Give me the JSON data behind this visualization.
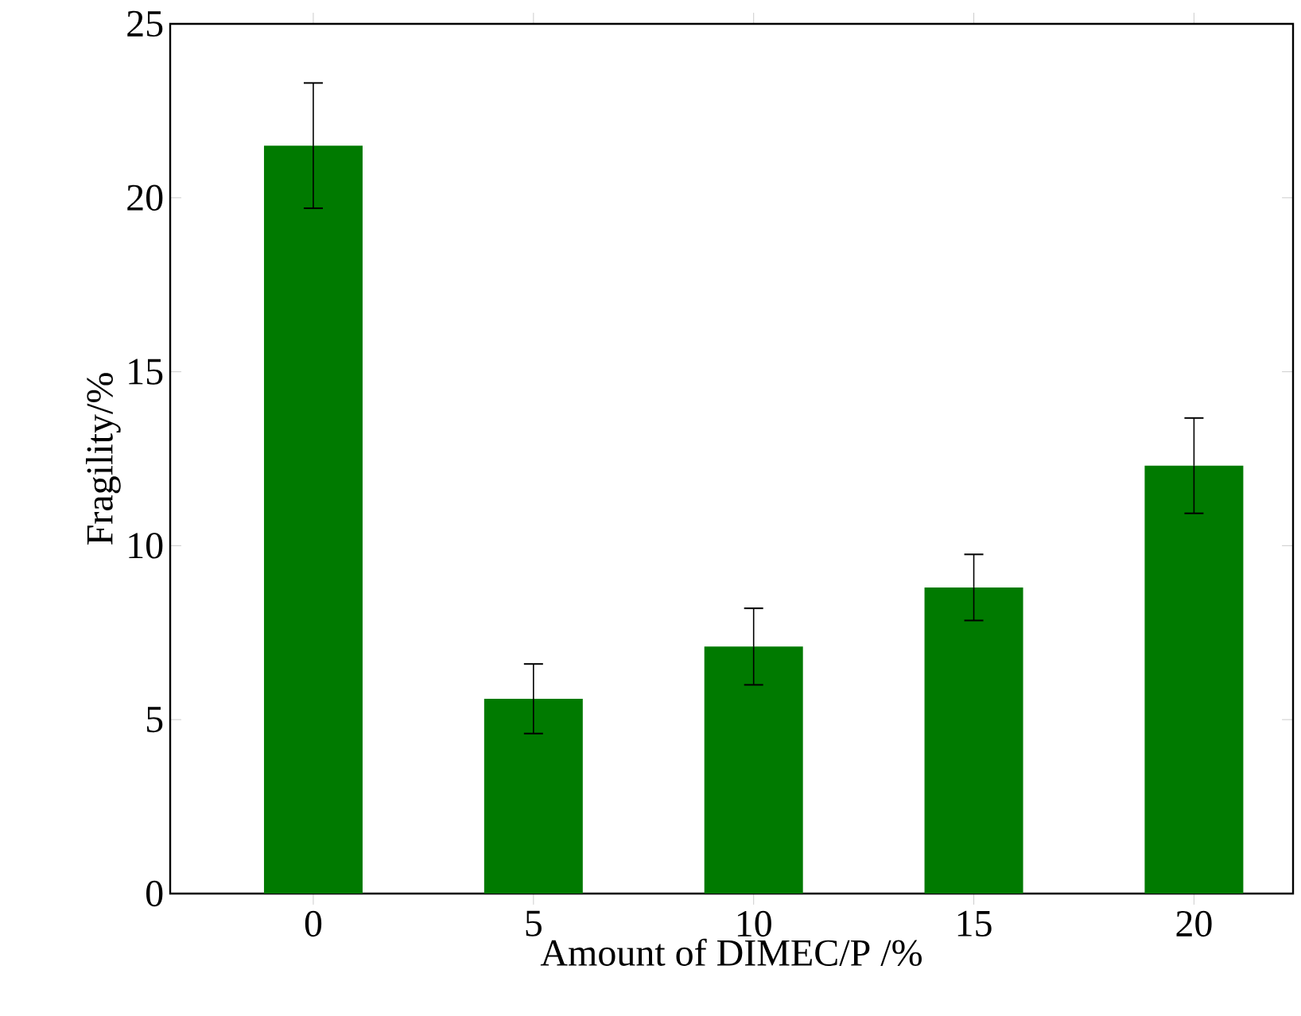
{
  "chart_data": {
    "type": "bar",
    "xlabel": "Amount of DIMEC/P /%",
    "ylabel": "Fragility/%",
    "categories": [
      "0",
      "5",
      "10",
      "15",
      "20"
    ],
    "values": [
      21.5,
      5.6,
      7.1,
      8.8,
      12.3
    ],
    "errors": [
      1.8,
      1.0,
      1.1,
      0.95,
      1.37
    ],
    "color": "#007a00",
    "ylim": [
      0,
      25
    ],
    "yticks": [
      0,
      5,
      10,
      15,
      20,
      25
    ],
    "grid": false
  }
}
